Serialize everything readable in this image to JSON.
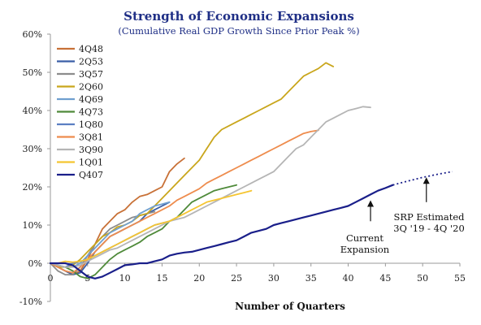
{
  "chart_data": {
    "type": "line",
    "title": "Strength of Economic Expansions",
    "subtitle": "(Cumulative Real GDP Growth Since Prior Peak %)",
    "xlabel": "Number of Quarters",
    "ylabel": "",
    "xlim": [
      0,
      55
    ],
    "ylim": [
      -10,
      60
    ],
    "x_ticks": [
      "0",
      "5",
      "10",
      "15",
      "20",
      "25",
      "30",
      "35",
      "40",
      "45",
      "50",
      "55"
    ],
    "y_ticks": [
      "-10%",
      "0%",
      "10%",
      "20%",
      "30%",
      "40%",
      "50%",
      "60%"
    ],
    "grid": false,
    "legend_position": "top-left",
    "series": [
      {
        "name": "4Q48",
        "color": "#c87137",
        "values": [
          [
            0,
            0
          ],
          [
            1,
            -1
          ],
          [
            2,
            -2
          ],
          [
            3,
            -3
          ],
          [
            4,
            -2
          ],
          [
            5,
            1
          ],
          [
            6,
            5
          ],
          [
            7,
            9
          ],
          [
            8,
            11
          ],
          [
            9,
            13
          ],
          [
            10,
            14
          ],
          [
            11,
            16
          ],
          [
            12,
            17.5
          ],
          [
            13,
            18
          ],
          [
            14,
            19
          ],
          [
            15,
            20
          ],
          [
            16,
            24
          ],
          [
            17,
            26
          ],
          [
            18,
            27.5
          ]
        ]
      },
      {
        "name": "2Q53",
        "color": "#3a5ea6",
        "values": [
          [
            0,
            0
          ],
          [
            1,
            -1
          ],
          [
            2,
            -2
          ],
          [
            3,
            -3
          ],
          [
            4,
            -2.5
          ],
          [
            5,
            0
          ],
          [
            6,
            3
          ],
          [
            7,
            5
          ],
          [
            8,
            7
          ],
          [
            9,
            8
          ],
          [
            10,
            9
          ],
          [
            11,
            10
          ],
          [
            12,
            11
          ],
          [
            13,
            13
          ],
          [
            14,
            14
          ],
          [
            15,
            15
          ],
          [
            16,
            16
          ]
        ]
      },
      {
        "name": "3Q57",
        "color": "#8c8c8c",
        "values": [
          [
            0,
            0
          ],
          [
            1,
            -2
          ],
          [
            2,
            -3
          ],
          [
            3,
            -3
          ],
          [
            4,
            -1
          ],
          [
            5,
            2
          ],
          [
            6,
            5
          ],
          [
            7,
            7
          ],
          [
            8,
            9
          ],
          [
            9,
            10
          ],
          [
            10,
            11
          ],
          [
            11,
            12
          ],
          [
            12,
            12.5
          ],
          [
            13,
            13
          ],
          [
            14,
            13.5
          ]
        ]
      },
      {
        "name": "2Q60",
        "color": "#c9a61c",
        "values": [
          [
            0,
            0
          ],
          [
            1,
            -1
          ],
          [
            2,
            -1
          ],
          [
            3,
            -0.5
          ],
          [
            4,
            1
          ],
          [
            5,
            3
          ],
          [
            6,
            5
          ],
          [
            7,
            7
          ],
          [
            8,
            8
          ],
          [
            9,
            9.5
          ],
          [
            10,
            10
          ],
          [
            11,
            11
          ],
          [
            12,
            12.5
          ],
          [
            13,
            13
          ],
          [
            14,
            15
          ],
          [
            15,
            17
          ],
          [
            16,
            19
          ],
          [
            17,
            21
          ],
          [
            18,
            23
          ],
          [
            19,
            25
          ],
          [
            20,
            27
          ],
          [
            21,
            30
          ],
          [
            22,
            33
          ],
          [
            23,
            35
          ],
          [
            24,
            36
          ],
          [
            25,
            37
          ],
          [
            26,
            38
          ],
          [
            27,
            39
          ],
          [
            28,
            40
          ],
          [
            29,
            41
          ],
          [
            30,
            42
          ],
          [
            31,
            43
          ],
          [
            32,
            45
          ],
          [
            33,
            47
          ],
          [
            34,
            49
          ],
          [
            35,
            50
          ],
          [
            36,
            51
          ],
          [
            37,
            52.5
          ],
          [
            38,
            51.5
          ]
        ]
      },
      {
        "name": "4Q69",
        "color": "#6f9fcf",
        "values": [
          [
            0,
            0
          ],
          [
            1,
            -0.5
          ],
          [
            2,
            -1
          ],
          [
            3,
            -1
          ],
          [
            4,
            0
          ],
          [
            5,
            2
          ],
          [
            6,
            4
          ],
          [
            7,
            6
          ],
          [
            8,
            8
          ],
          [
            9,
            9
          ],
          [
            10,
            10
          ],
          [
            11,
            11
          ],
          [
            12,
            13
          ],
          [
            13,
            14
          ],
          [
            14,
            15
          ],
          [
            15,
            15.5
          ],
          [
            16,
            16
          ]
        ]
      },
      {
        "name": "4Q73",
        "color": "#4f8a3a",
        "values": [
          [
            0,
            0
          ],
          [
            1,
            -0.5
          ],
          [
            2,
            -1
          ],
          [
            3,
            -2
          ],
          [
            4,
            -3.5
          ],
          [
            5,
            -4
          ],
          [
            6,
            -3
          ],
          [
            7,
            -1
          ],
          [
            8,
            1
          ],
          [
            9,
            2.5
          ],
          [
            10,
            3.5
          ],
          [
            11,
            4.5
          ],
          [
            12,
            5.5
          ],
          [
            13,
            7
          ],
          [
            14,
            8
          ],
          [
            15,
            9
          ],
          [
            16,
            11
          ],
          [
            17,
            12
          ],
          [
            18,
            14
          ],
          [
            19,
            16
          ],
          [
            20,
            17
          ],
          [
            21,
            18
          ],
          [
            22,
            19
          ],
          [
            23,
            19.5
          ],
          [
            24,
            20
          ],
          [
            25,
            20.5
          ]
        ]
      },
      {
        "name": "1Q80",
        "color": "#5b7fc2",
        "values": [
          [
            0,
            0
          ],
          [
            1,
            -0.5
          ],
          [
            2,
            -1
          ],
          [
            3,
            0
          ],
          [
            4,
            0.5
          ],
          [
            5,
            1
          ],
          [
            6,
            2
          ],
          [
            7,
            3
          ],
          [
            8,
            4
          ],
          [
            9,
            5
          ],
          [
            10,
            6
          ],
          [
            11,
            7
          ],
          [
            12,
            8
          ],
          [
            13,
            9
          ],
          [
            14,
            10
          ],
          [
            15,
            10.5
          ],
          [
            16,
            11
          ]
        ]
      },
      {
        "name": "3Q81",
        "color": "#ee8c4d",
        "values": [
          [
            0,
            0
          ],
          [
            1,
            -1
          ],
          [
            2,
            -2
          ],
          [
            3,
            -2.5
          ],
          [
            4,
            -1
          ],
          [
            5,
            1
          ],
          [
            6,
            3
          ],
          [
            7,
            5
          ],
          [
            8,
            7
          ],
          [
            9,
            8
          ],
          [
            10,
            9
          ],
          [
            11,
            10
          ],
          [
            12,
            11
          ],
          [
            13,
            12
          ],
          [
            14,
            13
          ],
          [
            15,
            14
          ],
          [
            16,
            15
          ],
          [
            17,
            16.5
          ],
          [
            18,
            17.5
          ],
          [
            19,
            18.5
          ],
          [
            20,
            19.5
          ],
          [
            21,
            21
          ],
          [
            22,
            22
          ],
          [
            23,
            23
          ],
          [
            24,
            24
          ],
          [
            25,
            25
          ],
          [
            26,
            26
          ],
          [
            27,
            27
          ],
          [
            28,
            28
          ],
          [
            29,
            29
          ],
          [
            30,
            30
          ],
          [
            31,
            31
          ],
          [
            32,
            32
          ],
          [
            33,
            33
          ],
          [
            34,
            34
          ],
          [
            35,
            34.5
          ],
          [
            36,
            34.8
          ]
        ]
      },
      {
        "name": "3Q90",
        "color": "#b5b5b5",
        "values": [
          [
            0,
            0
          ],
          [
            1,
            -0.5
          ],
          [
            2,
            -1
          ],
          [
            3,
            -1
          ],
          [
            4,
            -0.5
          ],
          [
            5,
            0.5
          ],
          [
            6,
            1.5
          ],
          [
            7,
            2.5
          ],
          [
            8,
            3.5
          ],
          [
            9,
            4
          ],
          [
            10,
            5
          ],
          [
            11,
            6
          ],
          [
            12,
            7
          ],
          [
            13,
            8
          ],
          [
            14,
            9
          ],
          [
            15,
            10
          ],
          [
            16,
            11
          ],
          [
            17,
            11.5
          ],
          [
            18,
            12
          ],
          [
            19,
            13
          ],
          [
            20,
            14
          ],
          [
            21,
            15
          ],
          [
            22,
            16
          ],
          [
            23,
            17
          ],
          [
            24,
            18
          ],
          [
            25,
            19
          ],
          [
            26,
            20
          ],
          [
            27,
            21
          ],
          [
            28,
            22
          ],
          [
            29,
            23
          ],
          [
            30,
            24
          ],
          [
            31,
            26
          ],
          [
            32,
            28
          ],
          [
            33,
            30
          ],
          [
            34,
            31
          ],
          [
            35,
            33
          ],
          [
            36,
            35
          ],
          [
            37,
            37
          ],
          [
            38,
            38
          ],
          [
            39,
            39
          ],
          [
            40,
            40
          ],
          [
            41,
            40.5
          ],
          [
            42,
            41
          ],
          [
            43,
            40.8
          ]
        ]
      },
      {
        "name": "1Q01",
        "color": "#f5c531",
        "values": [
          [
            0,
            0
          ],
          [
            1,
            0
          ],
          [
            2,
            0.5
          ],
          [
            3,
            0.3
          ],
          [
            4,
            0.5
          ],
          [
            5,
            1
          ],
          [
            6,
            2
          ],
          [
            7,
            3
          ],
          [
            8,
            4
          ],
          [
            9,
            5
          ],
          [
            10,
            6
          ],
          [
            11,
            7
          ],
          [
            12,
            8
          ],
          [
            13,
            9
          ],
          [
            14,
            10
          ],
          [
            15,
            10.5
          ],
          [
            16,
            11
          ],
          [
            17,
            12
          ],
          [
            18,
            13
          ],
          [
            19,
            14
          ],
          [
            20,
            15
          ],
          [
            21,
            16
          ],
          [
            22,
            16.5
          ],
          [
            23,
            17
          ],
          [
            24,
            17.5
          ],
          [
            25,
            18
          ],
          [
            26,
            18.5
          ],
          [
            27,
            19
          ]
        ]
      },
      {
        "name": "Q407",
        "color": "#1a1f8a",
        "values": [
          [
            0,
            0
          ],
          [
            1,
            0
          ],
          [
            2,
            0
          ],
          [
            3,
            -0.5
          ],
          [
            4,
            -2
          ],
          [
            5,
            -3.5
          ],
          [
            6,
            -4
          ],
          [
            7,
            -3.5
          ],
          [
            8,
            -2.5
          ],
          [
            9,
            -1.5
          ],
          [
            10,
            -0.5
          ],
          [
            11,
            -0.3
          ],
          [
            12,
            0
          ],
          [
            13,
            0
          ],
          [
            14,
            0.5
          ],
          [
            15,
            1
          ],
          [
            16,
            2
          ],
          [
            17,
            2.5
          ],
          [
            18,
            2.8
          ],
          [
            19,
            3
          ],
          [
            20,
            3.5
          ],
          [
            21,
            4
          ],
          [
            22,
            4.5
          ],
          [
            23,
            5
          ],
          [
            24,
            5.5
          ],
          [
            25,
            6
          ],
          [
            26,
            7
          ],
          [
            27,
            8
          ],
          [
            28,
            8.5
          ],
          [
            29,
            9
          ],
          [
            30,
            10
          ],
          [
            31,
            10.5
          ],
          [
            32,
            11
          ],
          [
            33,
            11.5
          ],
          [
            34,
            12
          ],
          [
            35,
            12.5
          ],
          [
            36,
            13
          ],
          [
            37,
            13.5
          ],
          [
            38,
            14
          ],
          [
            39,
            14.5
          ],
          [
            40,
            15
          ],
          [
            41,
            16
          ],
          [
            42,
            17
          ],
          [
            43,
            18
          ],
          [
            44,
            19
          ],
          [
            45,
            19.7
          ],
          [
            46,
            20.5
          ]
        ]
      }
    ],
    "projection": {
      "name": "SRP Estimated",
      "color": "#1a1f8a",
      "style": "dotted",
      "values": [
        [
          46,
          20.5
        ],
        [
          48,
          21.5
        ],
        [
          50,
          22.5
        ],
        [
          52,
          23.3
        ],
        [
          54,
          24
        ]
      ]
    },
    "annotations": [
      {
        "id": "current",
        "lines": [
          "Current",
          "Expansion"
        ],
        "arrow_to": [
          43,
          16.5
        ],
        "arrow_from": [
          43,
          11
        ]
      },
      {
        "id": "srp",
        "lines": [
          "SRP Estimated",
          "3Q '19 - 4Q '20"
        ],
        "arrow_to": [
          50.5,
          22.5
        ],
        "arrow_from": [
          50.5,
          16
        ]
      }
    ]
  }
}
